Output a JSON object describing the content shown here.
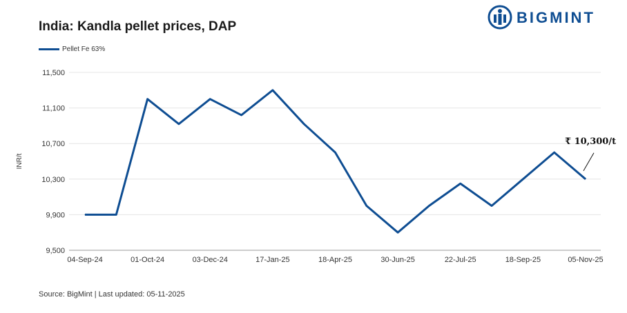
{
  "header": {
    "title": "India: Kandla pellet prices, DAP",
    "brand": "BIGMINT"
  },
  "footer": {
    "source": "Source: BigMint | Last updated: 05-11-2025"
  },
  "colors": {
    "series": "#0e4d92",
    "grid": "#e4e4e4",
    "brand": "#0e4d92"
  },
  "chart_data": {
    "type": "line",
    "title": "India: Kandla pellet prices, DAP",
    "xlabel": "",
    "ylabel": "INR/t",
    "ylim": [
      9500,
      11500
    ],
    "yticks": [
      9500,
      9900,
      10300,
      10700,
      11100,
      11500
    ],
    "ytick_labels": [
      "9,500",
      "9,900",
      "10,300",
      "10,700",
      "11,100",
      "11,500"
    ],
    "xtick_labels": [
      "04-Sep-24",
      "01-Oct-24",
      "03-Dec-24",
      "17-Jan-25",
      "18-Apr-25",
      "30-Jun-25",
      "22-Jul-25",
      "18-Sep-25",
      "05-Nov-25"
    ],
    "grid": true,
    "legend_position": "top-left",
    "series": [
      {
        "name": "Pellet Fe 63%",
        "values": [
          9900,
          9900,
          11200,
          10920,
          11200,
          11020,
          11300,
          10920,
          10600,
          10000,
          9700,
          10000,
          10250,
          10000,
          10300,
          10600,
          10300
        ]
      }
    ],
    "annotation": {
      "text": "₹ 10,300/t",
      "value": 10300
    }
  }
}
